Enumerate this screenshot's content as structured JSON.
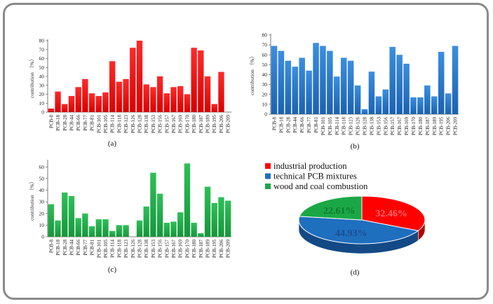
{
  "chart_data": [
    {
      "type": "bar",
      "panel_label": "(a)",
      "ylabel": "contribution （%）",
      "ylim": [
        0,
        80
      ],
      "yticks": [
        0,
        10,
        20,
        30,
        40,
        50,
        60,
        70,
        80
      ],
      "grid": false,
      "color": "#ff0000",
      "categories": [
        "PCB-8",
        "PCB-18",
        "PCB-28",
        "PCB-44",
        "PCB-66",
        "PCB-77",
        "PCB-81",
        "PCB-101",
        "PCB-105",
        "PCB-114",
        "PCB-118",
        "PCB-123",
        "PCB-126",
        "PCB-128",
        "PCB-138",
        "PCB-153",
        "PCB-156",
        "PCB-157",
        "PCB-167",
        "PCB-169",
        "PCB-170",
        "PCB-180",
        "PCB-187",
        "PCB-189",
        "PCB-195",
        "PCB-206",
        "PCB-209"
      ],
      "values": [
        4,
        23,
        9,
        18,
        28,
        37,
        21,
        18,
        22,
        57,
        34,
        37,
        72,
        80,
        31,
        28,
        40,
        21,
        28,
        29,
        20,
        72,
        69,
        40,
        9,
        45,
        0
      ]
    },
    {
      "type": "bar",
      "panel_label": "(b)",
      "ylabel": "contribution （%）",
      "ylim": [
        0,
        80
      ],
      "yticks": [
        0,
        10,
        20,
        30,
        40,
        50,
        60,
        70,
        80
      ],
      "grid": false,
      "color": "#1f6fbf",
      "categories": [
        "PCB-8",
        "PCB-18",
        "PCB-28",
        "PCB-44",
        "PCB-66",
        "PCB-77",
        "PCB-81",
        "PCB-101",
        "PCB-105",
        "PCB-114",
        "PCB-118",
        "PCB-123",
        "PCB-126",
        "PCB-128",
        "PCB-138",
        "PCB-153",
        "PCB-156",
        "PCB-157",
        "PCB-167",
        "PCB-169",
        "PCB-170",
        "PCB-180",
        "PCB-187",
        "PCB-189",
        "PCB-195",
        "PCB-206",
        "PCB-209"
      ],
      "values": [
        69,
        64,
        54,
        48,
        57,
        44,
        72,
        69,
        64,
        38,
        57,
        54,
        29,
        5,
        43,
        18,
        25,
        68,
        60,
        51,
        17,
        17,
        29,
        18,
        63,
        21,
        69
      ]
    },
    {
      "type": "bar",
      "panel_label": "(c)",
      "ylabel": "contribution （%）",
      "ylim": [
        0,
        65
      ],
      "yticks": [
        0,
        10,
        20,
        30,
        40,
        50,
        60
      ],
      "grid": false,
      "color": "#1aa846",
      "categories": [
        "PCB-8",
        "PCB-18",
        "PCB-28",
        "PCB-44",
        "PCB-66",
        "PCB-77",
        "PCB-81",
        "PCB-101",
        "PCB-105",
        "PCB-114",
        "PCB-118",
        "PCB-123",
        "PCB-126",
        "PCB-128",
        "PCB-138",
        "PCB-153",
        "PCB-156",
        "PCB-157",
        "PCB-167",
        "PCB-169",
        "PCB-170",
        "PCB-180",
        "PCB-187",
        "PCB-189",
        "PCB-195",
        "PCB-206",
        "PCB-209"
      ],
      "values": [
        28,
        14,
        38,
        35,
        16,
        20,
        9,
        15,
        15,
        5,
        10,
        10,
        0,
        14,
        26,
        55,
        37,
        12,
        13,
        21,
        63,
        12,
        3,
        43,
        29,
        34,
        31
      ]
    },
    {
      "type": "pie",
      "panel_label": "(d)",
      "style": "3d",
      "legend_position": "top",
      "slices": [
        {
          "name": "industrial production",
          "value": 32.46,
          "label": "32.46%",
          "color": "#ff0000"
        },
        {
          "name": " technical PCB mixtures",
          "value": 44.93,
          "label": "44.93%",
          "color": "#1f6fbf"
        },
        {
          "name": "wood and coal combustion",
          "value": 22.61,
          "label": "22.61%",
          "color": "#1aa846"
        }
      ]
    }
  ]
}
